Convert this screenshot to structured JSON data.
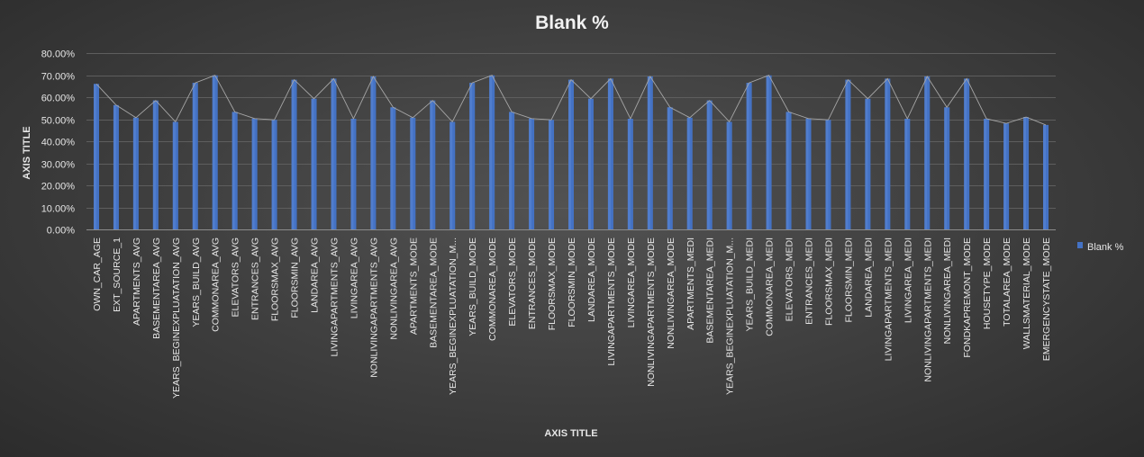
{
  "chart_data": {
    "type": "bar",
    "title": "Blank %",
    "xlabel": "AXIS TITLE",
    "ylabel": "AXIS TITLE",
    "ylim": [
      0,
      0.8
    ],
    "yticks": [
      "0.00%",
      "10.00%",
      "20.00%",
      "30.00%",
      "40.00%",
      "50.00%",
      "60.00%",
      "70.00%",
      "80.00%"
    ],
    "grid": true,
    "legend": "right",
    "series_color": "#4472c4",
    "series": [
      {
        "name": "Blank %",
        "values": [
          0.66,
          0.564,
          0.507,
          0.585,
          0.488,
          0.665,
          0.699,
          0.533,
          0.503,
          0.497,
          0.679,
          0.593,
          0.684,
          0.502,
          0.694,
          0.554,
          0.507,
          0.585,
          0.488,
          0.665,
          0.699,
          0.533,
          0.503,
          0.497,
          0.679,
          0.593,
          0.684,
          0.502,
          0.694,
          0.554,
          0.507,
          0.585,
          0.488,
          0.665,
          0.699,
          0.533,
          0.503,
          0.497,
          0.679,
          0.593,
          0.684,
          0.502,
          0.694,
          0.554,
          0.684,
          0.502,
          0.481,
          0.51,
          0.474
        ]
      }
    ],
    "categories": [
      "OWN_CAR_AGE",
      "EXT_SOURCE_1",
      "APARTMENTS_AVG",
      "BASEMENTAREA_AVG",
      "YEARS_BEGINEXPLUATATION_AVG",
      "YEARS_BUILD_AVG",
      "COMMONAREA_AVG",
      "ELEVATORS_AVG",
      "ENTRANCES_AVG",
      "FLOORSMAX_AVG",
      "FLOORSMIN_AVG",
      "LANDAREA_AVG",
      "LIVINGAPARTMENTS_AVG",
      "LIVINGAREA_AVG",
      "NONLIVINGAPARTMENTS_AVG",
      "NONLIVINGAREA_AVG",
      "APARTMENTS_MODE",
      "BASEMENTAREA_MODE",
      "YEARS_BEGINEXPLUATATION_M...",
      "YEARS_BUILD_MODE",
      "COMMONAREA_MODE",
      "ELEVATORS_MODE",
      "ENTRANCES_MODE",
      "FLOORSMAX_MODE",
      "FLOORSMIN_MODE",
      "LANDAREA_MODE",
      "LIVINGAPARTMENTS_MODE",
      "LIVINGAREA_MODE",
      "NONLIVINGAPARTMENTS_MODE",
      "NONLIVINGAREA_MODE",
      "APARTMENTS_MEDI",
      "BASEMENTAREA_MEDI",
      "YEARS_BEGINEXPLUATATION_M...",
      "YEARS_BUILD_MEDI",
      "COMMONAREA_MEDI",
      "ELEVATORS_MEDI",
      "ENTRANCES_MEDI",
      "FLOORSMAX_MEDI",
      "FLOORSMIN_MEDI",
      "LANDAREA_MEDI",
      "LIVINGAPARTMENTS_MEDI",
      "LIVINGAREA_MEDI",
      "NONLIVINGAPARTMENTS_MEDI",
      "NONLIVINGAREA_MEDI",
      "FONDKAPREMONT_MODE",
      "HOUSETYPE_MODE",
      "TOTALAREA_MODE",
      "WALLSMATERIAL_MODE",
      "EMERGENCYSTATE_MODE"
    ]
  }
}
